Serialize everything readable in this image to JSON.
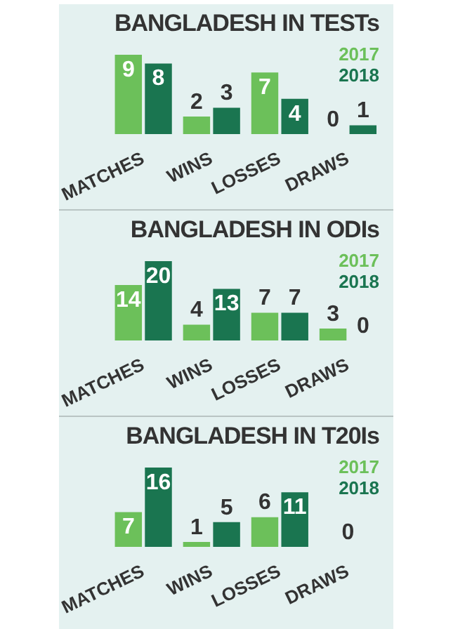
{
  "chart_data": [
    {
      "type": "bar",
      "title": "BANGLADESH IN TESTs",
      "categories": [
        "MATCHES",
        "WINS",
        "LOSSES",
        "DRAWS"
      ],
      "legend": "top right",
      "data_labels": true,
      "series": [
        {
          "name": "2017",
          "color": "#6cc05a",
          "values": [
            9,
            2,
            7,
            0
          ]
        },
        {
          "name": "2018",
          "color": "#1a7550",
          "values": [
            8,
            3,
            4,
            1
          ]
        }
      ]
    },
    {
      "type": "bar",
      "title": "BANGLADESH IN ODIs",
      "categories": [
        "MATCHES",
        "WINS",
        "LOSSES",
        "DRAWS"
      ],
      "legend": "top right",
      "data_labels": true,
      "series": [
        {
          "name": "2017",
          "color": "#6cc05a",
          "values": [
            14,
            4,
            7,
            3
          ]
        },
        {
          "name": "2018",
          "color": "#1a7550",
          "values": [
            20,
            13,
            7,
            0
          ]
        }
      ]
    },
    {
      "type": "bar",
      "title": "BANGLADESH IN T20Is",
      "categories": [
        "MATCHES",
        "WINS",
        "LOSSES",
        "DRAWS"
      ],
      "legend": "top right",
      "series": [
        {
          "name": "2017",
          "color": "#6cc05a",
          "values": [
            7,
            1,
            6,
            0
          ],
          "value_labels": [
            "7",
            "1",
            "6",
            null
          ]
        },
        {
          "name": "2018",
          "color": "#1a7550",
          "values": [
            16,
            5,
            11,
            0
          ],
          "value_labels": [
            "16",
            "5",
            "11",
            null
          ]
        }
      ],
      "annotations": [
        {
          "text": "0",
          "x": "DRAWS",
          "y": 0
        }
      ]
    }
  ]
}
